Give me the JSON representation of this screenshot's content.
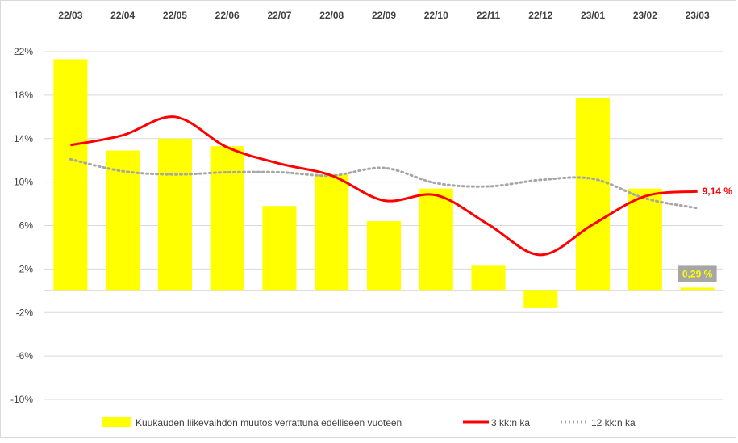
{
  "chart_data": {
    "type": "bar",
    "categories": [
      "22/03",
      "22/04",
      "22/05",
      "22/06",
      "22/07",
      "22/08",
      "22/09",
      "22/10",
      "22/11",
      "22/12",
      "23/01",
      "23/02",
      "23/03"
    ],
    "series": [
      {
        "name": "Kuukauden liikevaihdon muutos verrattuna edelliseen vuoteen",
        "type": "bar",
        "color": "#ffff00",
        "values": [
          21.3,
          12.9,
          14.0,
          13.3,
          7.8,
          10.7,
          6.4,
          9.4,
          2.3,
          -1.6,
          17.7,
          9.4,
          0.29
        ]
      },
      {
        "name": "3 kk:n ka",
        "type": "line",
        "color": "#ff0000",
        "values": [
          13.4,
          14.3,
          16.0,
          13.2,
          11.7,
          10.6,
          8.3,
          8.8,
          6.1,
          3.3,
          6.1,
          8.7,
          9.14
        ]
      },
      {
        "name": "12 kk:n ka",
        "type": "line",
        "style": "dotted",
        "color": "#a6a6a6",
        "values": [
          12.1,
          11.0,
          10.7,
          10.9,
          10.9,
          10.6,
          11.3,
          9.9,
          9.6,
          10.2,
          10.3,
          8.5,
          7.6
        ]
      }
    ],
    "yticks": [
      "22%",
      "18%",
      "14%",
      "10%",
      "6%",
      "2%",
      "-2%",
      "-6%",
      "-10%"
    ],
    "ylim": [
      -10,
      22
    ],
    "grid": true,
    "legend_position": "bottom",
    "annotations": {
      "line_label": "9,14 %",
      "bar_label": "0,29 %"
    }
  }
}
